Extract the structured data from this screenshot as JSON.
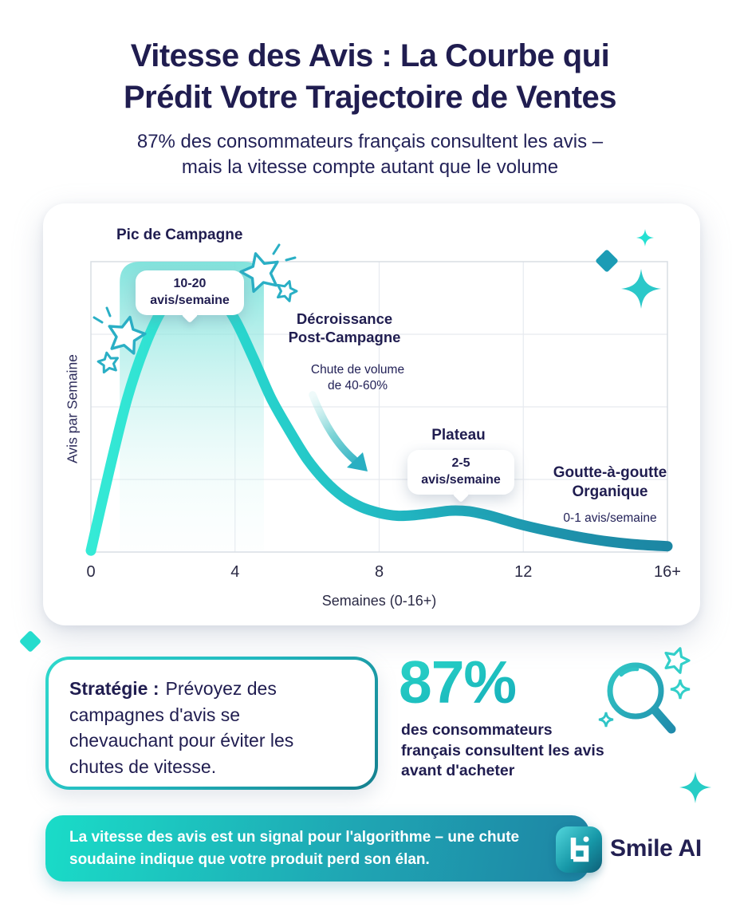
{
  "header": {
    "title_lines": [
      "Vitesse des Avis : La Courbe qui",
      "Prédit Votre Trajectoire de Ventes"
    ],
    "subtitle_lines": [
      "87% des consommateurs français consultent les avis –",
      "mais la vitesse compte autant que le volume"
    ]
  },
  "chart_data": {
    "type": "line",
    "xlabel": "Semaines (0-16+)",
    "ylabel": "Avis par Semaine",
    "xticks": [
      "0",
      "4",
      "8",
      "12",
      "16+"
    ],
    "xtick_weeks": [
      0,
      4,
      8,
      12,
      16
    ],
    "x_range_weeks": [
      0,
      16
    ],
    "y_range_reviews_per_week": [
      0,
      20
    ],
    "grid": true,
    "legend": "none",
    "campaign_highlight_weeks": [
      0.8,
      4.8
    ],
    "series": [
      {
        "name": "Vitesse des avis",
        "points_week_vs_avis": [
          [
            0,
            0.1
          ],
          [
            0.5,
            5.5
          ],
          [
            1,
            10.5
          ],
          [
            1.5,
            14.2
          ],
          [
            2,
            16.8
          ],
          [
            2.5,
            18.2
          ],
          [
            3,
            18.6
          ],
          [
            3.5,
            17.8
          ],
          [
            4,
            16
          ],
          [
            4.5,
            13.4
          ],
          [
            5,
            10.6
          ],
          [
            5.5,
            8.4
          ],
          [
            6,
            6.4
          ],
          [
            6.5,
            4.9
          ],
          [
            7,
            3.8
          ],
          [
            7.5,
            3.1
          ],
          [
            8,
            2.7
          ],
          [
            8.5,
            2.5
          ],
          [
            9,
            2.55
          ],
          [
            9.5,
            2.7
          ],
          [
            10,
            2.85
          ],
          [
            10.5,
            2.8
          ],
          [
            11,
            2.55
          ],
          [
            11.5,
            2.2
          ],
          [
            12,
            1.85
          ],
          [
            13,
            1.3
          ],
          [
            14,
            0.85
          ],
          [
            15,
            0.55
          ],
          [
            16,
            0.4
          ]
        ]
      }
    ],
    "annotations": {
      "peak": {
        "label": "Pic de Campagne",
        "callout_line1": "10-20",
        "callout_line2": "avis/semaine"
      },
      "decline": {
        "label_lines": [
          "Décroissance",
          "Post-Campagne"
        ],
        "note_lines": [
          "Chute de volume",
          "de 40-60%"
        ]
      },
      "plateau": {
        "label": "Plateau",
        "callout_line1": "2-5",
        "callout_line2": "avis/semaine"
      },
      "organic": {
        "label_lines": [
          "Goutte-à-goutte",
          "Organique"
        ],
        "note": "0-1 avis/semaine"
      }
    }
  },
  "strategy": {
    "label": "Stratégie :",
    "lines": [
      "Prévoyez des",
      "campagnes d'avis se",
      "chevauchant pour éviter les",
      "chutes de vitesse."
    ]
  },
  "stat": {
    "value": "87%",
    "caption_lines": [
      "des consommateurs",
      "français consultent les avis",
      "avant d'acheter"
    ]
  },
  "footer": {
    "text_lines": [
      "La vitesse des avis est un signal pour l'algorithme – une chute",
      "soudaine indique que votre produit perd son élan."
    ],
    "brand": "Smile AI"
  },
  "colors": {
    "navy": "#232258",
    "teal_bright": "#2EE3D1",
    "teal": "#1FB9C1",
    "teal_dark": "#1B88A5",
    "highlight_fill": "#7FE2DA",
    "stat_teal": "#1FC2C0"
  }
}
